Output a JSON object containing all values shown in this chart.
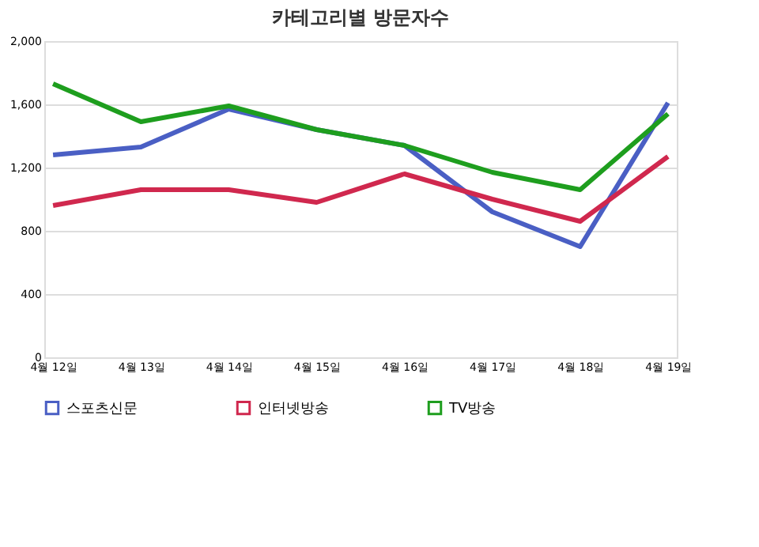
{
  "chart_data": {
    "type": "line",
    "title": "카테고리별 방문자수",
    "categories": [
      "4월 12일",
      "4월 13일",
      "4월 14일",
      "4월 15일",
      "4월 16일",
      "4월 17일",
      "4월 18일",
      "4월 19일"
    ],
    "series": [
      {
        "name": "스포츠신문",
        "color": "#4a5fc4",
        "values": [
          1280,
          1330,
          1570,
          1440,
          1340,
          920,
          700,
          1610
        ]
      },
      {
        "name": "인터넷방송",
        "color": "#d0284e",
        "values": [
          960,
          1060,
          1060,
          980,
          1160,
          1000,
          860,
          1270
        ]
      },
      {
        "name": "TV방송",
        "color": "#1e9e1e",
        "values": [
          1730,
          1490,
          1590,
          1440,
          1340,
          1170,
          1060,
          1540
        ]
      }
    ],
    "ylim": [
      0,
      2000
    ],
    "yticks": [
      0,
      400,
      800,
      {
        "value": 1200,
        "label": "1,200"
      },
      {
        "value": 1600,
        "label": "1,600"
      },
      {
        "value": 2000,
        "label": "2,000"
      }
    ],
    "grid": "y",
    "legend": "bottom",
    "marker": "none",
    "line_style": "solid"
  }
}
